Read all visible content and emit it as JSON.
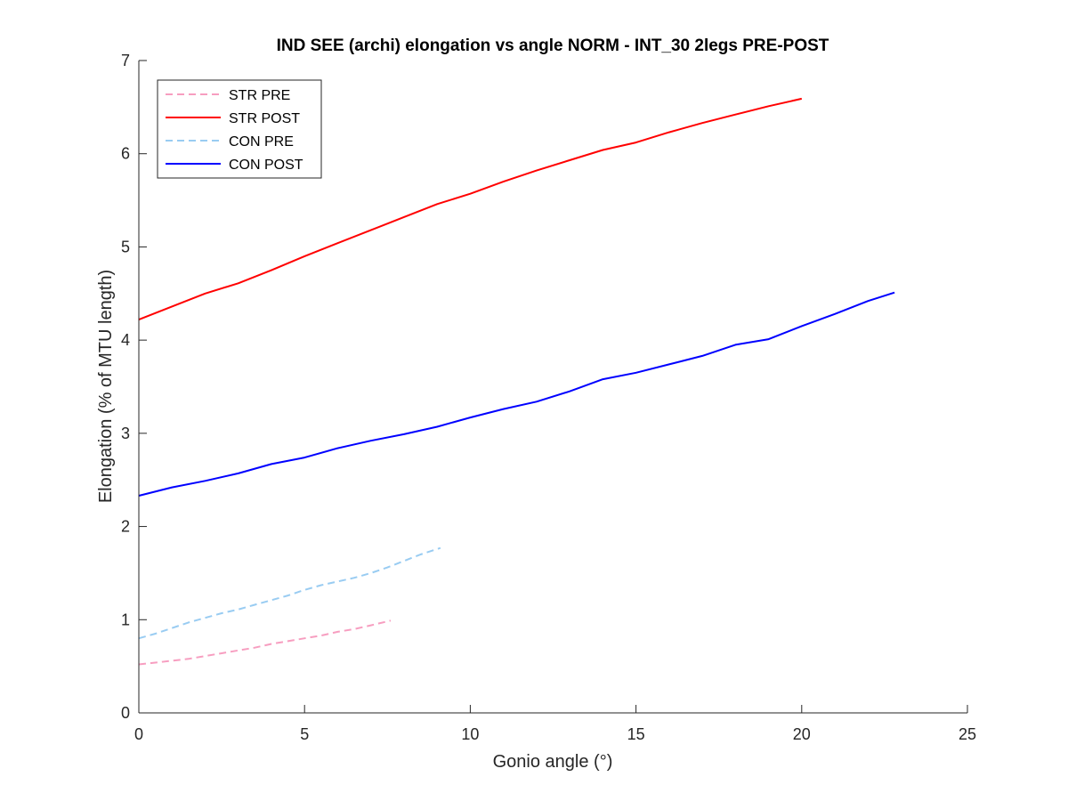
{
  "chart_data": {
    "type": "line",
    "title": "IND SEE (archi) elongation vs angle NORM - INT_30 2legs PRE-POST",
    "xlabel": "Gonio angle (°)",
    "ylabel": "Elongation (% of MTU length)",
    "xlim": [
      0,
      25
    ],
    "ylim": [
      0,
      7
    ],
    "xticks": [
      "0",
      "5",
      "10",
      "15",
      "20",
      "25"
    ],
    "yticks": [
      "0",
      "1",
      "2",
      "3",
      "4",
      "5",
      "6",
      "7"
    ],
    "grid": false,
    "legend_position": "top-left",
    "series": [
      {
        "name": "STR PRE",
        "color": "#f79ec0",
        "dash": true,
        "x": [
          0,
          0.5,
          1,
          1.5,
          2,
          2.5,
          3,
          3.5,
          4,
          4.5,
          5,
          5.5,
          6,
          6.5,
          7,
          7.6
        ],
        "y": [
          0.52,
          0.54,
          0.56,
          0.58,
          0.61,
          0.64,
          0.67,
          0.7,
          0.74,
          0.77,
          0.8,
          0.83,
          0.87,
          0.9,
          0.94,
          0.99
        ]
      },
      {
        "name": "STR POST",
        "color": "#ff0000",
        "dash": false,
        "x": [
          0,
          1,
          2,
          3,
          4,
          5,
          6,
          7,
          8,
          9,
          10,
          11,
          12,
          13,
          14,
          15,
          16,
          17,
          18,
          19,
          20
        ],
        "y": [
          4.22,
          4.36,
          4.5,
          4.61,
          4.75,
          4.9,
          5.04,
          5.18,
          5.32,
          5.46,
          5.57,
          5.7,
          5.82,
          5.93,
          6.04,
          6.12,
          6.23,
          6.33,
          6.42,
          6.51,
          6.59
        ]
      },
      {
        "name": "CON PRE",
        "color": "#99ccf2",
        "dash": true,
        "x": [
          0,
          0.5,
          1,
          1.5,
          2,
          2.5,
          3,
          3.5,
          4,
          4.5,
          5,
          5.5,
          6,
          6.5,
          7,
          7.5,
          8,
          8.5,
          9.1
        ],
        "y": [
          0.8,
          0.85,
          0.91,
          0.97,
          1.02,
          1.07,
          1.11,
          1.16,
          1.21,
          1.26,
          1.32,
          1.37,
          1.41,
          1.45,
          1.5,
          1.56,
          1.63,
          1.7,
          1.77
        ]
      },
      {
        "name": "CON POST",
        "color": "#0000ff",
        "dash": false,
        "x": [
          0,
          1,
          2,
          3,
          4,
          5,
          6,
          7,
          8,
          9,
          10,
          11,
          12,
          13,
          14,
          15,
          16,
          17,
          18,
          19,
          20,
          21,
          22,
          22.8
        ],
        "y": [
          2.33,
          2.42,
          2.49,
          2.57,
          2.67,
          2.74,
          2.84,
          2.92,
          2.99,
          3.07,
          3.17,
          3.26,
          3.34,
          3.45,
          3.58,
          3.65,
          3.74,
          3.83,
          3.95,
          4.01,
          4.15,
          4.28,
          4.42,
          4.51
        ]
      }
    ]
  }
}
